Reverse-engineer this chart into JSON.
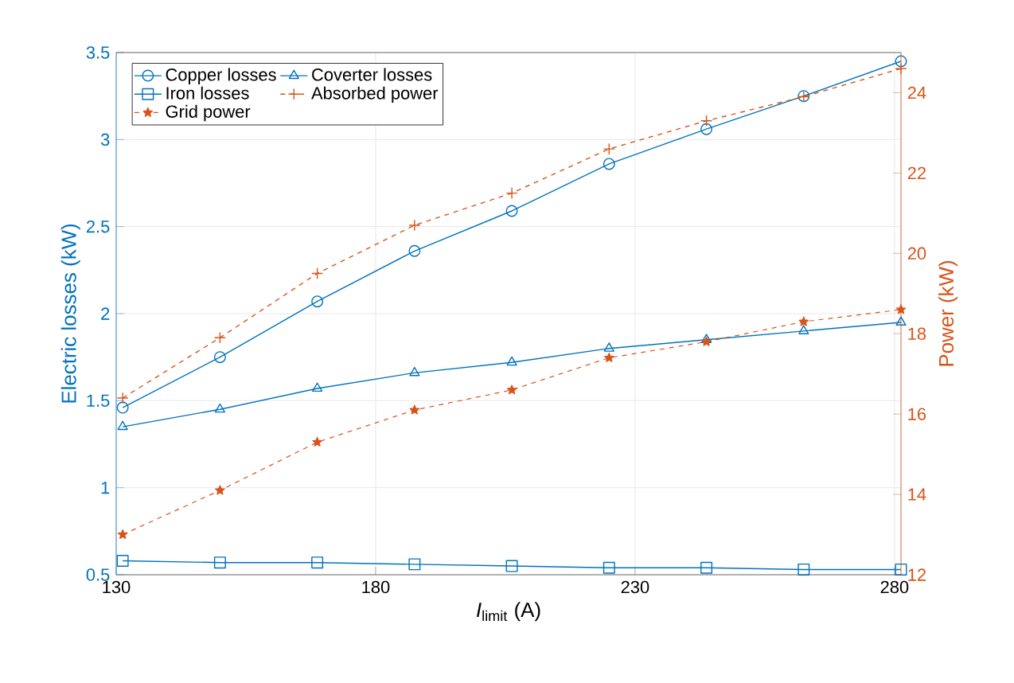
{
  "chart_data": {
    "type": "line",
    "xlabel": "*I*$_{limit}$ (A)",
    "ylabel": "Electric losses (kW)",
    "y2label": "Power (kW)",
    "x": [
      131.25,
      150,
      168.75,
      187.5,
      206.25,
      225,
      243.75,
      262.5,
      281.25
    ],
    "xlim": [
      130,
      281.25
    ],
    "xticks": [
      130,
      180,
      230,
      280
    ],
    "ylim": [
      0.5,
      3.5
    ],
    "yticks": [
      0.5,
      1,
      1.5,
      2,
      2.5,
      3,
      3.5
    ],
    "y2lim": [
      12,
      25
    ],
    "y2ticks": [
      12,
      14,
      16,
      18,
      20,
      22,
      24
    ],
    "grid": true,
    "legend": "top left",
    "series": [
      {
        "name": "Copper losses",
        "color": "#0072bd",
        "marker": "circle",
        "line_style": "solid",
        "values": [
          1.46,
          1.75,
          2.07,
          2.36,
          2.59,
          2.86,
          3.06,
          3.25,
          3.45
        ]
      },
      {
        "name": "Coverter losses",
        "color": "#0072bd",
        "marker": "triangle",
        "line_style": "solid",
        "values": [
          1.35,
          1.45,
          1.57,
          1.66,
          1.72,
          1.8,
          1.85,
          1.9,
          1.95
        ]
      },
      {
        "name": "Iron losses",
        "color": "#0072bd",
        "marker": "square",
        "line_style": "solid",
        "values": [
          0.58,
          0.57,
          0.57,
          0.56,
          0.55,
          0.54,
          0.54,
          0.53,
          0.53
        ]
      },
      {
        "name": "Absorbed power",
        "color": "#d95319",
        "marker": "cross",
        "line_style": "dashed",
        "axis": "y2",
        "values": [
          16.4,
          17.9,
          19.5,
          20.7,
          21.5,
          22.6,
          23.3,
          23.9,
          24.6
        ]
      },
      {
        "name": "Grid power",
        "color": "#d95319",
        "marker": "star",
        "line_style": "dashed",
        "axis": "y2",
        "values": [
          13.0,
          14.1,
          15.3,
          16.1,
          16.6,
          17.4,
          17.8,
          18.3,
          18.6
        ]
      }
    ]
  }
}
